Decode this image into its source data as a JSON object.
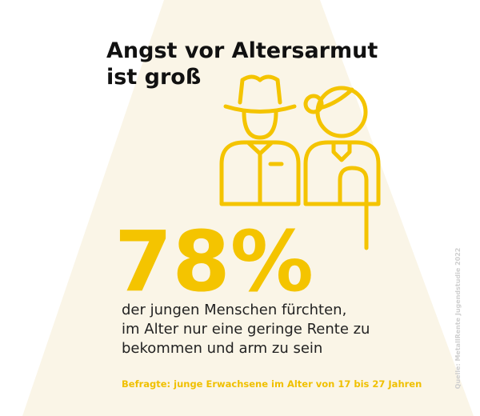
{
  "title": {
    "lines": [
      "Angst vor Altersarmut",
      "ist groß"
    ]
  },
  "stat": {
    "value": "78%",
    "description": [
      "der jungen Menschen fürchten,",
      "im Alter nur eine geringe Rente zu",
      "bekommen und arm zu sein"
    ]
  },
  "note": "Befragte: junge Erwachsene im Alter von 17 bis 27 Jahren",
  "source": "Quelle: MetallRente Jugendstudie 2022"
}
